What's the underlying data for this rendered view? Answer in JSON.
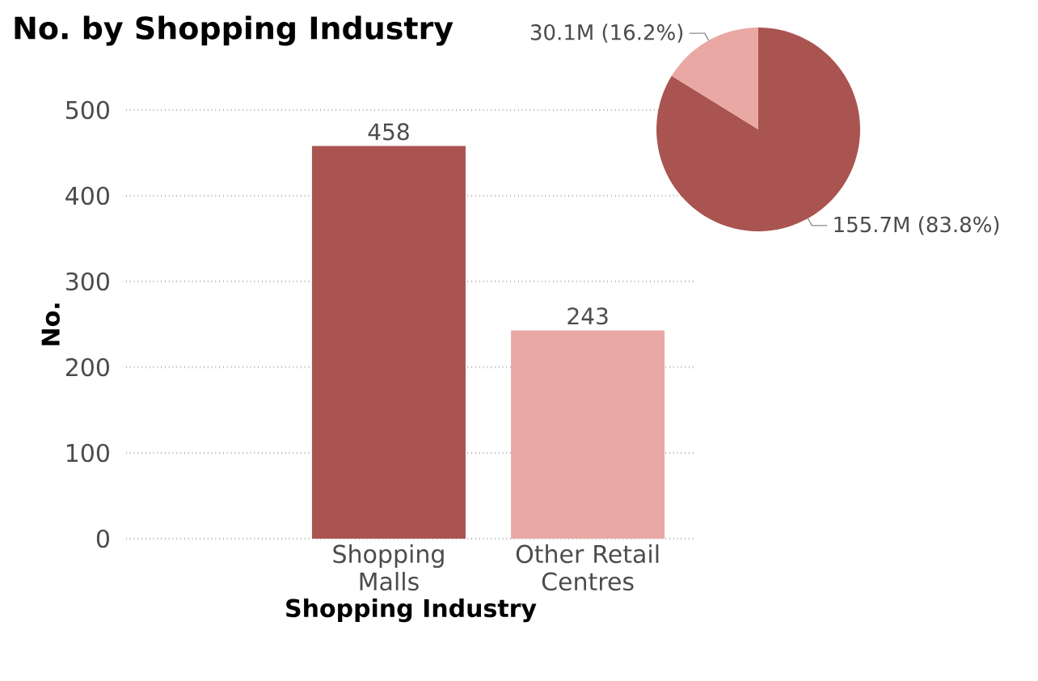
{
  "chart_data": [
    {
      "type": "bar",
      "title": "No. by Shopping Industry",
      "xlabel": "Shopping Industry",
      "ylabel": "No.",
      "categories": [
        "Shopping Malls",
        "Other Retail Centres"
      ],
      "values": [
        458,
        243
      ],
      "colors": [
        "#a95450",
        "#e9a8a4"
      ],
      "ylim": [
        0,
        500
      ],
      "yticks": [
        0,
        100,
        200,
        300,
        400,
        500
      ],
      "grid": "y",
      "data_labels": true
    },
    {
      "type": "pie",
      "categories": [
        null,
        null
      ],
      "values": [
        83.8,
        16.2
      ],
      "colors": [
        "#a95450",
        "#e9a8a4"
      ],
      "value_labels": [
        "155.7M (83.8%)",
        "30.1M (16.2%)"
      ]
    }
  ]
}
